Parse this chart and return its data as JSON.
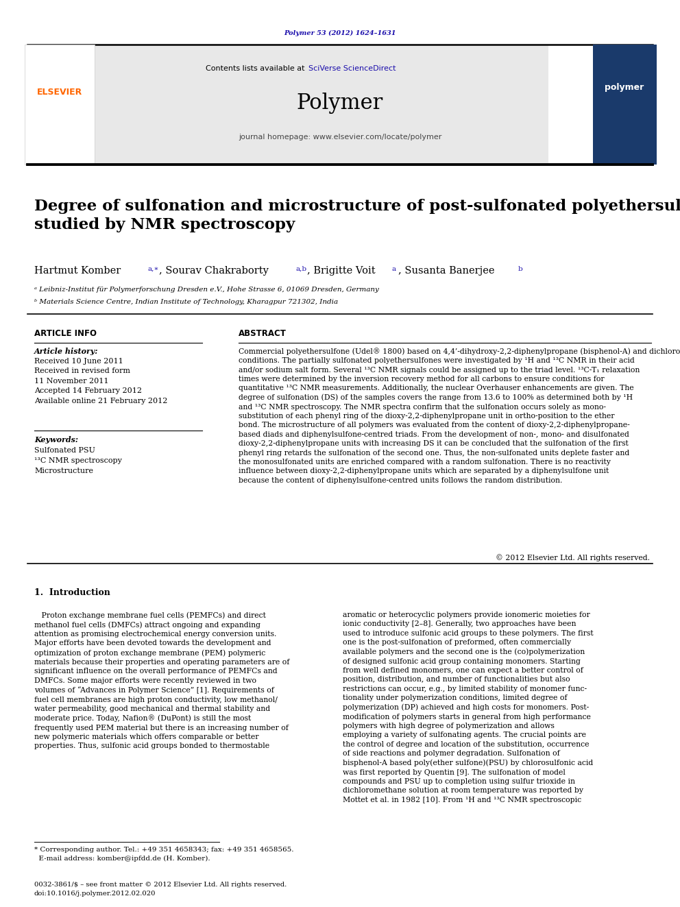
{
  "background_color": "#ffffff",
  "page_width": 9.92,
  "page_height": 13.23,
  "journal_ref": "Polymer 53 (2012) 1624–1631",
  "journal_ref_color": "#1a0dab",
  "contents_text": "Contents lists available at ",
  "sciverse_text": "SciVerse ScienceDirect",
  "sciverse_color": "#1a0dab",
  "journal_name": "Polymer",
  "journal_homepage": "journal homepage: www.elsevier.com/locate/polymer",
  "header_bg": "#e8e8e8",
  "elsevier_color": "#ff6600",
  "article_title": "Degree of sulfonation and microstructure of post-sulfonated polyethersulfone\nstudied by NMR spectroscopy",
  "affil_a": "ᵃ Leibniz-Institut für Polymerforschung Dresden e.V., Hohe Strasse 6, 01069 Dresden, Germany",
  "affil_b": "ᵇ Materials Science Centre, Indian Institute of Technology, Kharagpur 721302, India",
  "article_info_title": "ARTICLE INFO",
  "abstract_title": "ABSTRACT",
  "article_history_label": "Article history:",
  "article_history": "Received 10 June 2011\nReceived in revised form\n11 November 2011\nAccepted 14 February 2012\nAvailable online 21 February 2012",
  "keywords_label": "Keywords:",
  "keywords": "Sulfonated PSU\n¹³C NMR spectroscopy\nMicrostructure",
  "abstract_text": "Commercial polyethersulfone (Udel® 1800) based on 4,4’-dihydroxy-2,2-diphenylpropane (bisphenol-A) and dichlorodiphenylsulfone was post-sulfonated using trimethylsilyl chlorosulfonate under mild\nconditions. The partially sulfonated polyethersulfones were investigated by ¹H and ¹³C NMR in their acid\nand/or sodium salt form. Several ¹³C NMR signals could be assigned up to the triad level. ¹³C-T₁ relaxation\ntimes were determined by the inversion recovery method for all carbons to ensure conditions for\nquantitative ¹³C NMR measurements. Additionally, the nuclear Overhauser enhancements are given. The\ndegree of sulfonation (DS) of the samples covers the range from 13.6 to 100% as determined both by ¹H\nand ¹³C NMR spectroscopy. The NMR spectra confirm that the sulfonation occurs solely as mono-\nsubstitution of each phenyl ring of the dioxy-2,2-diphenylpropane unit in ortho-position to the ether\nbond. The microstructure of all polymers was evaluated from the content of dioxy-2,2-diphenylpropane-\nbased diads and diphenylsulfone-centred triads. From the development of non-, mono- and disulfonated\ndioxy-2,2-diphenylpropane units with increasing DS it can be concluded that the sulfonation of the first\nphenyl ring retards the sulfonation of the second one. Thus, the non-sulfonated units deplete faster and\nthe monosulfonated units are enriched compared with a random sulfonation. There is no reactivity\ninfluence between dioxy-2,2-diphenylpropane units which are separated by a diphenylsulfone unit\nbecause the content of diphenylsulfone-centred units follows the random distribution.",
  "copyright_text": "© 2012 Elsevier Ltd. All rights reserved.",
  "intro_heading": "1.  Introduction",
  "intro_col1": "   Proton exchange membrane fuel cells (PEMFCs) and direct\nmethanol fuel cells (DMFCs) attract ongoing and expanding\nattention as promising electrochemical energy conversion units.\nMajor efforts have been devoted towards the development and\noptimization of proton exchange membrane (PEM) polymeric\nmaterials because their properties and operating parameters are of\nsignificant influence on the overall performance of PEMFCs and\nDMFCs. Some major efforts were recently reviewed in two\nvolumes of “Advances in Polymer Science” [1]. Requirements of\nfuel cell membranes are high proton conductivity, low methanol/\nwater permeability, good mechanical and thermal stability and\nmoderate price. Today, Nafion® (DuPont) is still the most\nfrequently used PEM material but there is an increasing number of\nnew polymeric materials which offers comparable or better\nproperties. Thus, sulfonic acid groups bonded to thermostable",
  "intro_col2": "aromatic or heterocyclic polymers provide ionomeric moieties for\nionic conductivity [2–8]. Generally, two approaches have been\nused to introduce sulfonic acid groups to these polymers. The first\none is the post-sulfonation of preformed, often commercially\navailable polymers and the second one is the (co)polymerization\nof designed sulfonic acid group containing monomers. Starting\nfrom well defined monomers, one can expect a better control of\nposition, distribution, and number of functionalities but also\nrestrictions can occur, e.g., by limited stability of monomer func-\ntionality under polymerization conditions, limited degree of\npolymerization (DP) achieved and high costs for monomers. Post-\nmodification of polymers starts in general from high performance\npolymers with high degree of polymerization and allows\nemploying a variety of sulfonating agents. The crucial points are\nthe control of degree and location of the substitution, occurrence\nof side reactions and polymer degradation. Sulfonation of\nbisphenol-A based poly(ether sulfone)(PSU) by chlorosulfonic acid\nwas first reported by Quentin [9]. The sulfonation of model\ncompounds and PSU up to completion using sulfur trioxide in\ndichloromethane solution at room temperature was reported by\nMottet et al. in 1982 [10]. From ¹H and ¹³C NMR spectroscopic",
  "footnote_text": "* Corresponding author. Tel.: +49 351 4658343; fax: +49 351 4658565.\n  E-mail address: komber@ipfdd.de (H. Komber).",
  "bottom_text": "0032-3861/$ – see front matter © 2012 Elsevier Ltd. All rights reserved.\ndoi:10.1016/j.polymer.2012.02.020"
}
